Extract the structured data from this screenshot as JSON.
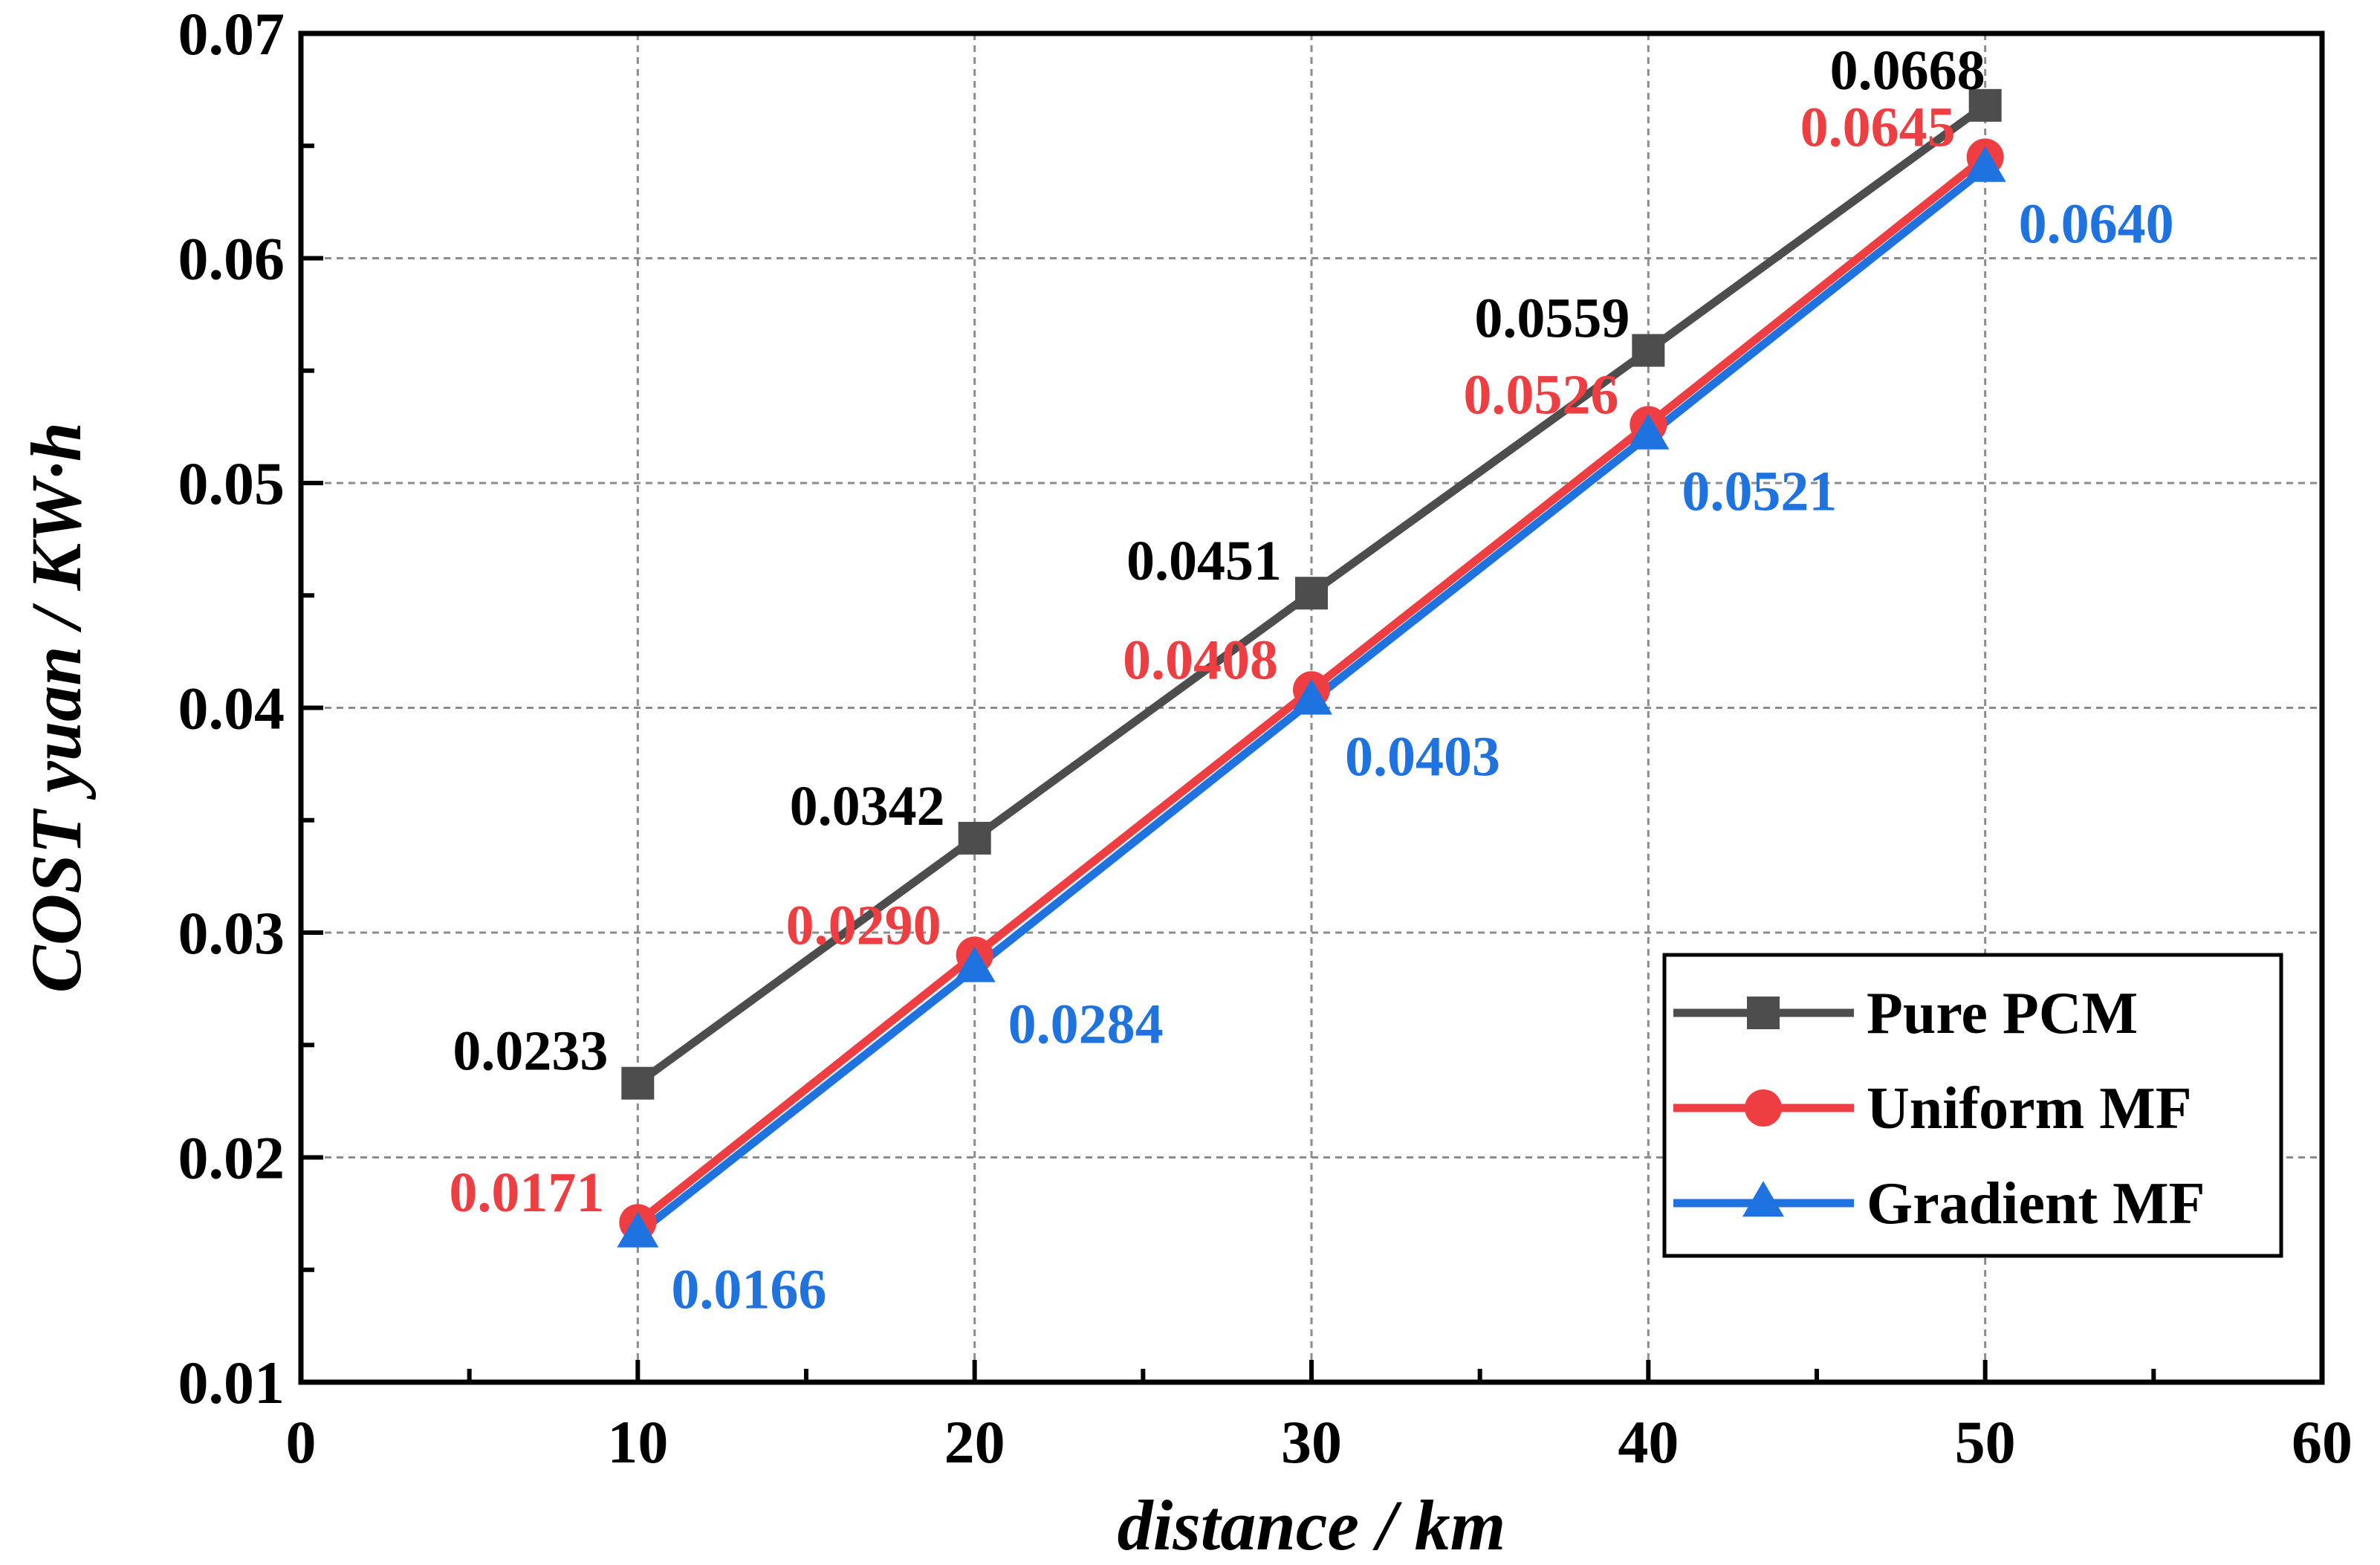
{
  "chart_data": {
    "type": "line",
    "title": "",
    "xlabel": "distance / km",
    "ylabel": "COST yuan / KW·h",
    "xlim": [
      0,
      60
    ],
    "ylim": [
      0.01,
      0.07
    ],
    "x_ticks": [
      0,
      10,
      20,
      30,
      40,
      50,
      60
    ],
    "x_tick_labels": [
      "0",
      "10",
      "20",
      "30",
      "40",
      "50",
      "60"
    ],
    "y_ticks": [
      0.01,
      0.02,
      0.03,
      0.04,
      0.05,
      0.06,
      0.07
    ],
    "y_tick_labels": [
      "0.01",
      "0.02",
      "0.03",
      "0.04",
      "0.05",
      "0.06",
      "0.07"
    ],
    "grid": true,
    "legend_position": "bottom-right",
    "x": [
      10,
      20,
      30,
      40,
      50
    ],
    "series": [
      {
        "name": "Pure PCM",
        "color": "#4d4d4d",
        "marker": "square",
        "values": [
          0.0233,
          0.0342,
          0.0451,
          0.0559,
          0.0668
        ],
        "labels": [
          "0.0233",
          "0.0342",
          "0.0451",
          "0.0559",
          "0.0668"
        ],
        "label_color": "#000000"
      },
      {
        "name": "Uniform MF",
        "color": "#ef3e42",
        "marker": "circle",
        "values": [
          0.0171,
          0.029,
          0.0408,
          0.0526,
          0.0645
        ],
        "labels": [
          "0.0171",
          "0.0290",
          "0.0408",
          "0.0526",
          "0.0645"
        ],
        "label_color": "#ef3e42"
      },
      {
        "name": "Gradient MF",
        "color": "#1e73e0",
        "marker": "triangle",
        "values": [
          0.0166,
          0.0284,
          0.0403,
          0.0521,
          0.064
        ],
        "labels": [
          "0.0166",
          "0.0284",
          "0.0403",
          "0.0521",
          "0.0640"
        ],
        "label_color": "#1e73e0"
      }
    ]
  }
}
